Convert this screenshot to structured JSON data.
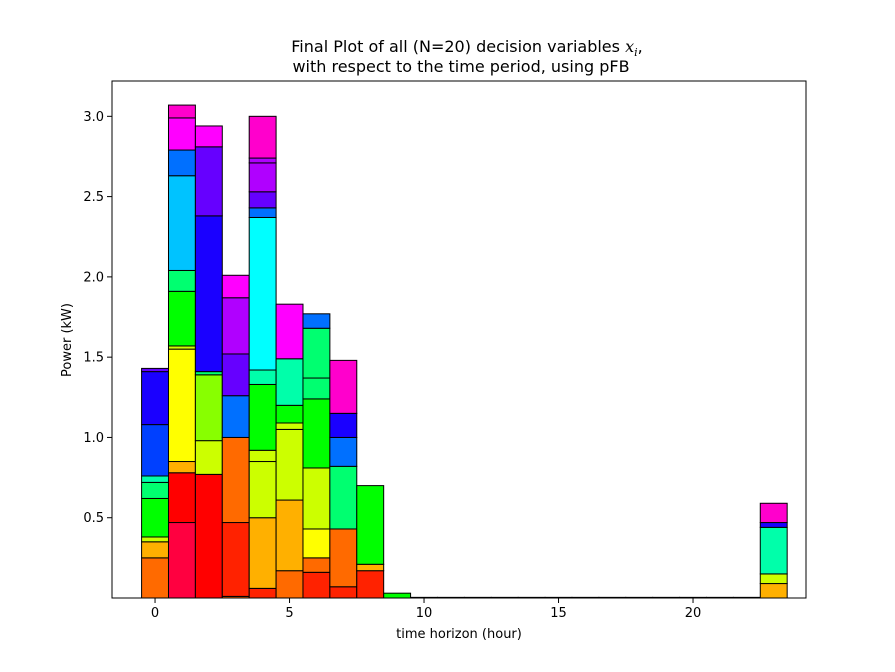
{
  "chart_data": {
    "type": "bar",
    "stacked": true,
    "title_line1_prefix": "Final Plot of all (N=20) decision variables ",
    "title_math_symbol": "x",
    "title_math_subscript": "i",
    "title_line1_suffix": ",",
    "title_line2": "with respect to the time period, using pFB",
    "xlabel": "time horizon (hour)",
    "ylabel": "Power (kW)",
    "xlim": [
      -1.6,
      24.2
    ],
    "ylim": [
      0,
      3.22
    ],
    "xticks": [
      {
        "value": 0,
        "label": "0"
      },
      {
        "value": 5,
        "label": "5"
      },
      {
        "value": 10,
        "label": "10"
      },
      {
        "value": 15,
        "label": "15"
      },
      {
        "value": 20,
        "label": "20"
      }
    ],
    "yticks": [
      {
        "value": 0.5,
        "label": "0.5"
      },
      {
        "value": 1.0,
        "label": "1.0"
      },
      {
        "value": 1.5,
        "label": "1.5"
      },
      {
        "value": 2.0,
        "label": "2.0"
      },
      {
        "value": 2.5,
        "label": "2.5"
      },
      {
        "value": 3.0,
        "label": "3.0"
      }
    ],
    "grid": false,
    "bar_width": 1.0,
    "edge_color": "#000000",
    "x": [
      0,
      1,
      2,
      3,
      4,
      5,
      6,
      7,
      8,
      9,
      10,
      11,
      12,
      13,
      14,
      15,
      16,
      17,
      18,
      19,
      20,
      21,
      22,
      23
    ],
    "colors": [
      "#ff0000",
      "#ff0040",
      "#ff2200",
      "#ff6a00",
      "#ffb000",
      "#ffff00",
      "#ccff00",
      "#88ff00",
      "#00ff00",
      "#00ff70",
      "#00ffaa",
      "#00e5ff",
      "#00ffff",
      "#00c3ff",
      "#0070ff",
      "#0040ff",
      "#1a00ff",
      "#6600ff",
      "#b000ff",
      "#ff00ff",
      "#ff00cc"
    ],
    "stacks": [
      [
        {
          "v": 0.25,
          "c": "#ff6a00"
        },
        {
          "v": 0.1,
          "c": "#ffb000"
        },
        {
          "v": 0.03,
          "c": "#ccff00"
        },
        {
          "v": 0.24,
          "c": "#00ff00"
        },
        {
          "v": 0.1,
          "c": "#00ff70"
        },
        {
          "v": 0.04,
          "c": "#00ffaa"
        },
        {
          "v": 0.32,
          "c": "#0040ff"
        },
        {
          "v": 0.33,
          "c": "#1a00ff"
        },
        {
          "v": 0.02,
          "c": "#6600ff"
        }
      ],
      [
        {
          "v": 0.47,
          "c": "#ff0040"
        },
        {
          "v": 0.31,
          "c": "#ff0000"
        },
        {
          "v": 0.07,
          "c": "#ffb000"
        },
        {
          "v": 0.7,
          "c": "#ffff00"
        },
        {
          "v": 0.02,
          "c": "#ccff00"
        },
        {
          "v": 0.34,
          "c": "#00ff00"
        },
        {
          "v": 0.13,
          "c": "#00ff70"
        },
        {
          "v": 0.59,
          "c": "#00c3ff"
        },
        {
          "v": 0.16,
          "c": "#0070ff"
        },
        {
          "v": 0.2,
          "c": "#ff00ff"
        },
        {
          "v": 0.08,
          "c": "#ff00cc"
        }
      ],
      [
        {
          "v": 0.77,
          "c": "#ff0000"
        },
        {
          "v": 0.21,
          "c": "#ccff00"
        },
        {
          "v": 0.41,
          "c": "#88ff00"
        },
        {
          "v": 0.02,
          "c": "#00ff70"
        },
        {
          "v": 0.97,
          "c": "#1a00ff"
        },
        {
          "v": 0.43,
          "c": "#6600ff"
        },
        {
          "v": 0.13,
          "c": "#ff00ff"
        }
      ],
      [
        {
          "v": 0.01,
          "c": "#ff6a00"
        },
        {
          "v": 0.46,
          "c": "#ff2200"
        },
        {
          "v": 0.53,
          "c": "#ff6a00"
        },
        {
          "v": 0.26,
          "c": "#0070ff"
        },
        {
          "v": 0.26,
          "c": "#6600ff"
        },
        {
          "v": 0.35,
          "c": "#b000ff"
        },
        {
          "v": 0.14,
          "c": "#ff00ff"
        }
      ],
      [
        {
          "v": 0.06,
          "c": "#ff2200"
        },
        {
          "v": 0.44,
          "c": "#ffb000"
        },
        {
          "v": 0.35,
          "c": "#ccff00"
        },
        {
          "v": 0.07,
          "c": "#ccff00"
        },
        {
          "v": 0.41,
          "c": "#00ff00"
        },
        {
          "v": 0.09,
          "c": "#00ffaa"
        },
        {
          "v": 0.95,
          "c": "#00ffff"
        },
        {
          "v": 0.06,
          "c": "#0070ff"
        },
        {
          "v": 0.1,
          "c": "#6600ff"
        },
        {
          "v": 0.18,
          "c": "#b000ff"
        },
        {
          "v": 0.03,
          "c": "#b000ff"
        },
        {
          "v": 0.26,
          "c": "#ff00cc"
        }
      ],
      [
        {
          "v": 0.17,
          "c": "#ff6a00"
        },
        {
          "v": 0.44,
          "c": "#ffb000"
        },
        {
          "v": 0.44,
          "c": "#ccff00"
        },
        {
          "v": 0.04,
          "c": "#ccff00"
        },
        {
          "v": 0.11,
          "c": "#00ff00"
        },
        {
          "v": 0.29,
          "c": "#00ffaa"
        },
        {
          "v": 0.34,
          "c": "#ff00ff"
        }
      ],
      [
        {
          "v": 0.16,
          "c": "#ff2200"
        },
        {
          "v": 0.09,
          "c": "#ff6a00"
        },
        {
          "v": 0.18,
          "c": "#ffff00"
        },
        {
          "v": 0.38,
          "c": "#ccff00"
        },
        {
          "v": 0.43,
          "c": "#00ff00"
        },
        {
          "v": 0.13,
          "c": "#00ff70"
        },
        {
          "v": 0.31,
          "c": "#00ff70"
        },
        {
          "v": 0.09,
          "c": "#0070ff"
        }
      ],
      [
        {
          "v": 0.07,
          "c": "#ff2200"
        },
        {
          "v": 0.36,
          "c": "#ff6a00"
        },
        {
          "v": 0.39,
          "c": "#00ff70"
        },
        {
          "v": 0.18,
          "c": "#0070ff"
        },
        {
          "v": 0.15,
          "c": "#1a00ff"
        },
        {
          "v": 0.33,
          "c": "#ff00cc"
        }
      ],
      [
        {
          "v": 0.17,
          "c": "#ff2200"
        },
        {
          "v": 0.04,
          "c": "#ffb000"
        },
        {
          "v": 0.49,
          "c": "#00ff00"
        }
      ],
      [
        {
          "v": 0.03,
          "c": "#00ff00"
        }
      ],
      [
        {
          "v": 0.004,
          "c": "#00ff00"
        }
      ],
      [
        {
          "v": 0.004,
          "c": "#00ff00"
        }
      ],
      [
        {
          "v": 0.004,
          "c": "#00ff00"
        }
      ],
      [
        {
          "v": 0.004,
          "c": "#00ff00"
        }
      ],
      [
        {
          "v": 0.004,
          "c": "#00ff00"
        }
      ],
      [
        {
          "v": 0.004,
          "c": "#00ff00"
        }
      ],
      [
        {
          "v": 0.004,
          "c": "#00ff00"
        }
      ],
      [
        {
          "v": 0.004,
          "c": "#00ff00"
        }
      ],
      [
        {
          "v": 0.004,
          "c": "#00ff00"
        }
      ],
      [
        {
          "v": 0.004,
          "c": "#00ff00"
        }
      ],
      [
        {
          "v": 0.004,
          "c": "#00ff00"
        }
      ],
      [
        {
          "v": 0.004,
          "c": "#00ff00"
        }
      ],
      [
        {
          "v": 0.004,
          "c": "#00ff00"
        }
      ],
      [
        {
          "v": 0.09,
          "c": "#ffb000"
        },
        {
          "v": 0.06,
          "c": "#ccff00"
        },
        {
          "v": 0.29,
          "c": "#00ffaa"
        },
        {
          "v": 0.03,
          "c": "#1a00ff"
        },
        {
          "v": 0.12,
          "c": "#ff00cc"
        }
      ]
    ]
  }
}
